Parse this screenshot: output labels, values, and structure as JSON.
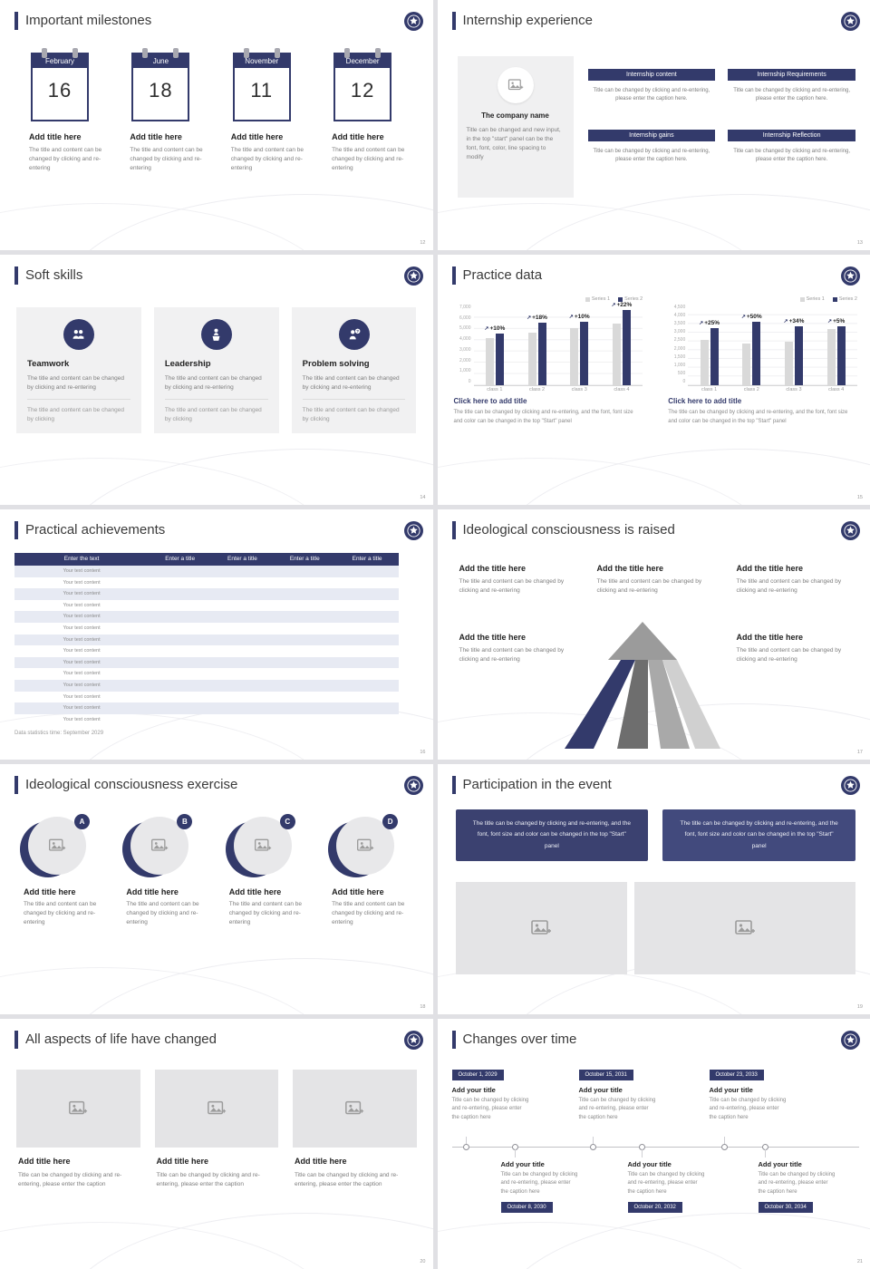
{
  "theme": {
    "navy": "#333a6b",
    "panel_gray": "#f0f0f1",
    "table_alt_row": "#e7eaf3",
    "bar_series1_color": "#d9d9d9",
    "bar_series2_color": "#333a6b"
  },
  "slides": {
    "s12": {
      "title": "Important milestones",
      "page_number": "12",
      "calendars": [
        {
          "month": "February",
          "day": "16",
          "item_title": "Add title here",
          "caption": "The title and content can be changed by clicking and re-entering"
        },
        {
          "month": "June",
          "day": "18",
          "item_title": "Add title here",
          "caption": "The title and content can be changed by clicking and re-entering"
        },
        {
          "month": "November",
          "day": "11",
          "item_title": "Add title here",
          "caption": "The title and content can be changed by clicking and re-entering"
        },
        {
          "month": "December",
          "day": "12",
          "item_title": "Add title here",
          "caption": "The title and content can be changed by clicking and re-entering"
        }
      ]
    },
    "s13": {
      "title": "Internship experience",
      "page_number": "13",
      "company_name": "The company name",
      "company_caption": "Title can be changed and new input, in the top \"start\" panel can be the font, font, color, line spacing to modify",
      "blocks": [
        {
          "header": "Internship content",
          "caption": "Title can be changed by clicking and re-entering, please enter the caption here."
        },
        {
          "header": "Internship Requirements",
          "caption": "Title can be changed by clicking and re-entering, please enter the caption here."
        },
        {
          "header": "Internship gains",
          "caption": "Title can be changed by clicking and re-entering, please enter the caption here."
        },
        {
          "header": "Internship Reflection",
          "caption": "Title can be changed by clicking and re-entering, please enter the caption here."
        }
      ]
    },
    "s14": {
      "title": "Soft skills",
      "page_number": "14",
      "cards": [
        {
          "name": "Teamwork",
          "icon": "teamwork-icon",
          "text": "The title and content can be changed by clicking and re-entering",
          "subtext": "The title and content can be changed by clicking"
        },
        {
          "name": "Leadership",
          "icon": "leadership-icon",
          "text": "The title and content can be changed by clicking and re-entering",
          "subtext": "The title and content can be changed by clicking"
        },
        {
          "name": "Problem solving",
          "icon": "problem-solving-icon",
          "text": "The title and content can be changed by clicking and re-entering",
          "subtext": "The title and content can be changed by clicking"
        }
      ]
    },
    "s15": {
      "title": "Practice data",
      "page_number": "15"
    },
    "s16": {
      "title": "Practical achievements",
      "page_number": "16",
      "footnote": "Data statistics time: September 2029",
      "table": {
        "headers": [
          "Enter the text",
          "Enter a title",
          "Enter a title",
          "Enter a title",
          "Enter a title"
        ],
        "rows": [
          "Your text content",
          "Your text content",
          "Your text content",
          "Your text content",
          "Your text content",
          "Your text content",
          "Your text content",
          "Your text content",
          "Your text content",
          "Your text content",
          "Your text content",
          "Your text content",
          "Your text content",
          "Your text content"
        ]
      }
    },
    "s17": {
      "title": "Ideological consciousness is raised",
      "page_number": "17",
      "blocks": [
        {
          "title": "Add the title here",
          "caption": "The title and content can be changed by clicking and re-entering"
        },
        {
          "title": "Add the title here",
          "caption": "The title and content can be changed by clicking and re-entering"
        },
        {
          "title": "Add the title here",
          "caption": "The title and content can be changed by clicking and re-entering"
        },
        {
          "title": "Add the title here",
          "caption": "The title and content can be changed by clicking and re-entering"
        },
        {
          "title": "Add the title here",
          "caption": "The title and content can be changed by clicking and re-entering"
        }
      ]
    },
    "s18": {
      "title": "Ideological consciousness exercise",
      "page_number": "18",
      "items": [
        {
          "letter": "A",
          "item_title": "Add title here",
          "caption": "The title and content can be changed by clicking and re-entering"
        },
        {
          "letter": "B",
          "item_title": "Add title here",
          "caption": "The title and content can be changed by clicking and re-entering"
        },
        {
          "letter": "C",
          "item_title": "Add title here",
          "caption": "The title and content can be changed by clicking and re-entering"
        },
        {
          "letter": "D",
          "item_title": "Add title here",
          "caption": "The title and content can be changed by clicking and re-entering"
        }
      ]
    },
    "s19": {
      "title": "Participation in the event",
      "page_number": "19",
      "boxes": [
        "The title can be changed by clicking and re-entering, and the font, font size and color can be changed in the top \"Start\" panel",
        "The title can be changed by clicking and re-entering, and the font, font size and color can be changed in the top \"Start\" panel"
      ]
    },
    "s20": {
      "title": "All aspects of life have changed",
      "page_number": "20",
      "cards": [
        {
          "item_title": "Add title here",
          "caption": "Title can be changed by clicking and re-entering, please enter the caption"
        },
        {
          "item_title": "Add title here",
          "caption": "Title can be changed by clicking and re-entering, please enter the caption"
        },
        {
          "item_title": "Add title here",
          "caption": "Title can be changed by clicking and re-entering, please enter the caption"
        }
      ]
    },
    "s21": {
      "title": "Changes over time",
      "page_number": "21",
      "top_items": [
        {
          "date": "October 1, 2029",
          "item_title": "Add your title",
          "caption": "Title can be changed by clicking and re-entering, please enter the caption here"
        },
        {
          "date": "October 15, 2031",
          "item_title": "Add your title",
          "caption": "Title can be changed by clicking and re-entering, please enter the caption here"
        },
        {
          "date": "October 23, 2033",
          "item_title": "Add your title",
          "caption": "Title can be changed by clicking and re-entering, please enter the caption here"
        }
      ],
      "bottom_items": [
        {
          "date": "October 8, 2030",
          "item_title": "Add your title",
          "caption": "Title can be changed by clicking and re-entering, please enter the caption here"
        },
        {
          "date": "October 20, 2032",
          "item_title": "Add your title",
          "caption": "Title can be changed by clicking and re-entering, please enter the caption here"
        },
        {
          "date": "October 30, 2034",
          "item_title": "Add your title",
          "caption": "Title can be changed by clicking and re-entering, please enter the caption here"
        }
      ]
    }
  },
  "chart_data": [
    {
      "type": "bar",
      "title": "Click here to add title",
      "caption": "The title can be changed by clicking and re-entering, and the font, font size and color can be changed in the top \"Start\" panel",
      "categories": [
        "class 1",
        "class 2",
        "class 3",
        "class 4"
      ],
      "series": [
        {
          "name": "Series 1",
          "values": [
            4200,
            4700,
            5100,
            5500
          ]
        },
        {
          "name": "Series 2",
          "values": [
            4620,
            5550,
            5610,
            6710
          ]
        }
      ],
      "annotations": [
        "+10%",
        "+18%",
        "+10%",
        "+22%"
      ],
      "ylim": [
        0,
        7000
      ],
      "ytick_step": 1000,
      "xlabel": "",
      "ylabel": "",
      "grid": true,
      "legend_position": "top-right"
    },
    {
      "type": "bar",
      "title": "Click here to add title",
      "caption": "The title can be changed by clicking and re-entering, and the font, font size and color can be changed in the top \"Start\" panel",
      "categories": [
        "class 1",
        "class 2",
        "class 3",
        "class 4"
      ],
      "series": [
        {
          "name": "Series 1",
          "values": [
            2600,
            2400,
            2500,
            3200
          ]
        },
        {
          "name": "Series 2",
          "values": [
            3250,
            3600,
            3350,
            3360
          ]
        }
      ],
      "annotations": [
        "+25%",
        "+50%",
        "+34%",
        "+5%"
      ],
      "ylim": [
        0,
        4500
      ],
      "ytick_step": 500,
      "xlabel": "",
      "ylabel": "",
      "grid": true,
      "legend_position": "top-right"
    }
  ]
}
